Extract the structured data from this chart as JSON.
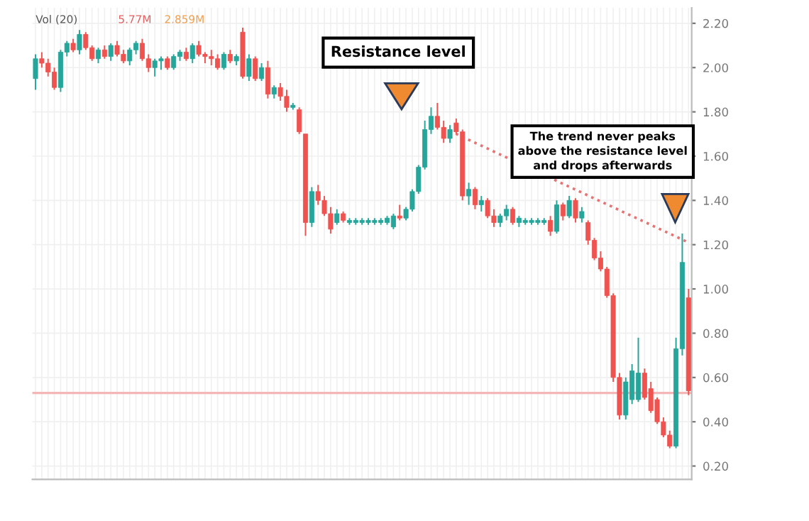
{
  "chart_data": {
    "type": "candlestick",
    "categories": [
      null,
      null,
      null,
      null,
      null,
      null,
      null,
      null,
      null,
      null,
      null,
      null,
      null,
      null,
      null,
      null,
      null,
      null,
      null,
      null,
      null,
      null,
      null,
      null,
      null,
      null,
      null,
      null,
      null,
      null,
      null,
      null,
      null,
      null,
      null,
      null,
      null,
      null,
      null,
      null,
      null,
      null,
      null,
      null,
      null,
      null,
      null,
      null,
      null,
      null,
      null,
      null,
      null,
      null,
      null,
      null,
      null,
      null,
      null,
      null,
      null,
      null,
      null,
      null,
      null,
      null,
      null,
      null,
      null,
      null,
      null,
      null,
      null,
      null,
      null,
      null,
      null,
      null,
      null,
      null,
      null,
      null,
      null,
      null,
      null,
      null,
      null,
      null,
      null,
      null,
      null,
      null,
      null,
      null,
      null,
      null,
      null,
      null,
      null,
      null,
      null,
      null,
      null,
      null,
      null
    ],
    "ohlc": [
      [
        1.95,
        2.06,
        1.9,
        2.04
      ],
      [
        2.04,
        2.07,
        2.0,
        2.02
      ],
      [
        2.02,
        2.04,
        1.96,
        1.98
      ],
      [
        1.98,
        2.0,
        1.9,
        1.91
      ],
      [
        1.91,
        2.08,
        1.89,
        2.07
      ],
      [
        2.07,
        2.12,
        2.05,
        2.11
      ],
      [
        2.11,
        2.13,
        2.07,
        2.08
      ],
      [
        2.08,
        2.17,
        2.06,
        2.15
      ],
      [
        2.15,
        2.16,
        2.08,
        2.09
      ],
      [
        2.09,
        2.1,
        2.03,
        2.04
      ],
      [
        2.04,
        2.09,
        2.02,
        2.08
      ],
      [
        2.08,
        2.1,
        2.04,
        2.05
      ],
      [
        2.05,
        2.11,
        2.03,
        2.1
      ],
      [
        2.1,
        2.12,
        2.05,
        2.06
      ],
      [
        2.06,
        2.08,
        2.02,
        2.03
      ],
      [
        2.03,
        2.09,
        2.01,
        2.08
      ],
      [
        2.08,
        2.12,
        2.06,
        2.11
      ],
      [
        2.11,
        2.13,
        2.03,
        2.04
      ],
      [
        2.04,
        2.06,
        1.98,
        2.0
      ],
      [
        2.0,
        2.04,
        1.96,
        2.03
      ],
      [
        2.03,
        2.05,
        1.99,
        2.04
      ],
      [
        2.04,
        2.05,
        1.99,
        2.0
      ],
      [
        2.0,
        2.06,
        1.99,
        2.05
      ],
      [
        2.05,
        2.08,
        2.03,
        2.07
      ],
      [
        2.07,
        2.09,
        2.03,
        2.04
      ],
      [
        2.04,
        2.11,
        2.02,
        2.1
      ],
      [
        2.1,
        2.12,
        2.05,
        2.06
      ],
      [
        2.06,
        2.07,
        2.02,
        2.05
      ],
      [
        2.05,
        2.08,
        2.01,
        2.04
      ],
      [
        2.04,
        2.06,
        1.99,
        2.0
      ],
      [
        2.0,
        2.07,
        1.99,
        2.06
      ],
      [
        2.06,
        2.08,
        2.02,
        2.03
      ],
      [
        2.03,
        2.06,
        2.01,
        2.05
      ],
      [
        2.16,
        2.18,
        1.95,
        1.96
      ],
      [
        1.96,
        2.06,
        1.94,
        2.04
      ],
      [
        2.04,
        2.05,
        1.94,
        1.95
      ],
      [
        1.95,
        2.02,
        1.94,
        2.0
      ],
      [
        2.0,
        2.03,
        1.86,
        1.88
      ],
      [
        1.88,
        1.92,
        1.86,
        1.91
      ],
      [
        1.91,
        1.93,
        1.85,
        1.87
      ],
      [
        1.87,
        1.9,
        1.8,
        1.82
      ],
      [
        1.82,
        1.84,
        1.81,
        1.83
      ],
      [
        1.81,
        1.82,
        1.7,
        1.71
      ],
      [
        1.7,
        1.7,
        1.24,
        1.3
      ],
      [
        1.3,
        1.46,
        1.28,
        1.44
      ],
      [
        1.44,
        1.47,
        1.38,
        1.4
      ],
      [
        1.4,
        1.42,
        1.33,
        1.34
      ],
      [
        1.34,
        1.37,
        1.25,
        1.27
      ],
      [
        1.3,
        1.36,
        1.29,
        1.34
      ],
      [
        1.34,
        1.35,
        1.3,
        1.31
      ],
      [
        1.3,
        1.32,
        1.29,
        1.31
      ],
      [
        1.3,
        1.32,
        1.29,
        1.31
      ],
      [
        1.3,
        1.32,
        1.29,
        1.31
      ],
      [
        1.3,
        1.32,
        1.29,
        1.31
      ],
      [
        1.3,
        1.32,
        1.29,
        1.31
      ],
      [
        1.3,
        1.32,
        1.29,
        1.31
      ],
      [
        1.3,
        1.33,
        1.29,
        1.32
      ],
      [
        1.28,
        1.34,
        1.27,
        1.33
      ],
      [
        1.33,
        1.38,
        1.31,
        1.32
      ],
      [
        1.32,
        1.37,
        1.31,
        1.36
      ],
      [
        1.36,
        1.45,
        1.35,
        1.44
      ],
      [
        1.44,
        1.56,
        1.43,
        1.55
      ],
      [
        1.55,
        1.76,
        1.54,
        1.72
      ],
      [
        1.72,
        1.82,
        1.7,
        1.78
      ],
      [
        1.78,
        1.84,
        1.72,
        1.73
      ],
      [
        1.73,
        1.76,
        1.66,
        1.68
      ],
      [
        1.68,
        1.74,
        1.66,
        1.72
      ],
      [
        1.75,
        1.77,
        1.7,
        1.71
      ],
      [
        1.71,
        1.72,
        1.4,
        1.42
      ],
      [
        1.42,
        1.48,
        1.38,
        1.45
      ],
      [
        1.45,
        1.46,
        1.36,
        1.38
      ],
      [
        1.38,
        1.42,
        1.35,
        1.4
      ],
      [
        1.4,
        1.41,
        1.32,
        1.33
      ],
      [
        1.33,
        1.36,
        1.28,
        1.3
      ],
      [
        1.3,
        1.34,
        1.28,
        1.33
      ],
      [
        1.33,
        1.38,
        1.31,
        1.36
      ],
      [
        1.36,
        1.37,
        1.29,
        1.3
      ],
      [
        1.3,
        1.33,
        1.28,
        1.32
      ],
      [
        1.3,
        1.32,
        1.29,
        1.31
      ],
      [
        1.3,
        1.32,
        1.29,
        1.31
      ],
      [
        1.3,
        1.32,
        1.29,
        1.31
      ],
      [
        1.3,
        1.32,
        1.29,
        1.31
      ],
      [
        1.31,
        1.33,
        1.24,
        1.26
      ],
      [
        1.26,
        1.4,
        1.25,
        1.38
      ],
      [
        1.38,
        1.39,
        1.31,
        1.33
      ],
      [
        1.33,
        1.42,
        1.32,
        1.4
      ],
      [
        1.4,
        1.41,
        1.3,
        1.32
      ],
      [
        1.32,
        1.37,
        1.3,
        1.35
      ],
      [
        1.3,
        1.31,
        1.2,
        1.22
      ],
      [
        1.22,
        1.23,
        1.13,
        1.14
      ],
      [
        1.14,
        1.17,
        1.08,
        1.09
      ],
      [
        1.09,
        1.1,
        0.96,
        0.97
      ],
      [
        0.97,
        0.98,
        0.58,
        0.6
      ],
      [
        0.6,
        0.62,
        0.41,
        0.43
      ],
      [
        0.43,
        0.6,
        0.41,
        0.58
      ],
      [
        0.5,
        0.66,
        0.48,
        0.63
      ],
      [
        0.5,
        0.78,
        0.49,
        0.62
      ],
      [
        0.62,
        0.64,
        0.5,
        0.51
      ],
      [
        0.55,
        0.58,
        0.44,
        0.45
      ],
      [
        0.5,
        0.51,
        0.39,
        0.4
      ],
      [
        0.4,
        0.42,
        0.33,
        0.34
      ],
      [
        0.34,
        0.36,
        0.28,
        0.29
      ],
      [
        0.29,
        0.78,
        0.28,
        0.73
      ],
      [
        0.73,
        1.25,
        0.7,
        1.12
      ],
      [
        0.96,
        1.0,
        0.52,
        0.54
      ]
    ],
    "colors": [
      "#26a69a",
      "#ef5350",
      "#ef5350",
      "#ef5350",
      "#26a69a",
      "#26a69a",
      "#ef5350",
      "#26a69a",
      "#ef5350",
      "#ef5350",
      "#26a69a",
      "#ef5350",
      "#26a69a",
      "#ef5350",
      "#ef5350",
      "#26a69a",
      "#26a69a",
      "#ef5350",
      "#ef5350",
      "#26a69a",
      "#26a69a",
      "#ef5350",
      "#26a69a",
      "#26a69a",
      "#ef5350",
      "#26a69a",
      "#ef5350",
      "#ef5350",
      "#ef5350",
      "#ef5350",
      "#26a69a",
      "#ef5350",
      "#26a69a",
      "#ef5350",
      "#26a69a",
      "#ef5350",
      "#26a69a",
      "#ef5350",
      "#26a69a",
      "#ef5350",
      "#ef5350",
      "#26a69a",
      "#ef5350",
      "#ef5350",
      "#26a69a",
      "#ef5350",
      "#ef5350",
      "#ef5350",
      "#26a69a",
      "#ef5350",
      "#26a69a",
      "#26a69a",
      "#26a69a",
      "#26a69a",
      "#26a69a",
      "#26a69a",
      "#26a69a",
      "#26a69a",
      "#ef5350",
      "#26a69a",
      "#26a69a",
      "#26a69a",
      "#26a69a",
      "#26a69a",
      "#ef5350",
      "#ef5350",
      "#26a69a",
      "#ef5350",
      "#ef5350",
      "#26a69a",
      "#ef5350",
      "#26a69a",
      "#ef5350",
      "#ef5350",
      "#26a69a",
      "#26a69a",
      "#ef5350",
      "#26a69a",
      "#26a69a",
      "#26a69a",
      "#26a69a",
      "#26a69a",
      "#ef5350",
      "#26a69a",
      "#ef5350",
      "#26a69a",
      "#ef5350",
      "#26a69a",
      "#ef5350",
      "#ef5350",
      "#ef5350",
      "#ef5350",
      "#ef5350",
      "#ef5350",
      "#26a69a",
      "#26a69a",
      "#26a69a",
      "#ef5350",
      "#ef5350",
      "#ef5350",
      "#ef5350",
      "#ef5350",
      "#26a69a",
      "#26a69a",
      "#ef5350"
    ],
    "series": [
      {
        "type": "line",
        "color": "#e57373",
        "line_style": "dotted",
        "values": [
          null,
          null,
          null,
          null,
          null,
          null,
          null,
          null,
          null,
          null,
          null,
          null,
          null,
          null,
          null,
          null,
          null,
          null,
          null,
          null,
          null,
          null,
          null,
          null,
          null,
          null,
          null,
          null,
          null,
          null,
          null,
          null,
          null,
          null,
          null,
          null,
          null,
          null,
          null,
          null,
          null,
          null,
          null,
          null,
          null,
          null,
          null,
          null,
          null,
          null,
          null,
          null,
          null,
          null,
          null,
          null,
          null,
          null,
          null,
          null,
          null,
          null,
          null,
          null,
          1.74,
          null,
          null,
          null,
          null,
          null,
          null,
          null,
          null,
          null,
          null,
          null,
          null,
          null,
          null,
          null,
          null,
          null,
          null,
          null,
          null,
          null,
          null,
          null,
          null,
          null,
          null,
          null,
          null,
          null,
          null,
          null,
          null,
          null,
          null,
          null,
          null,
          null,
          null,
          null,
          1.21
        ]
      }
    ],
    "ylim": [
      0.14,
      2.27
    ],
    "yticks": [
      {
        "value": 0.2,
        "label": "0.20"
      },
      {
        "value": 0.4,
        "label": "0.40"
      },
      {
        "value": 0.6,
        "label": "0.60"
      },
      {
        "value": 0.8,
        "label": "0.80"
      },
      {
        "value": 1.0,
        "label": "1.00"
      },
      {
        "value": 1.2,
        "label": "1.20"
      },
      {
        "value": 1.4,
        "label": "1.40"
      },
      {
        "value": 1.6,
        "label": "1.60"
      },
      {
        "value": 1.8,
        "label": "1.80"
      },
      {
        "value": 2.0,
        "label": "2.00"
      },
      {
        "value": 2.2,
        "label": "2.20"
      }
    ],
    "ref_lines": [
      {
        "axis": "y",
        "value": 0.53,
        "color": "#f4b6b6"
      }
    ],
    "grid": true,
    "annotations": [
      "Vol (20)",
      "5.77M",
      "2.859M",
      "Resistance level",
      "The trend never peaks above the resistance level and drops afterwards"
    ]
  }
}
